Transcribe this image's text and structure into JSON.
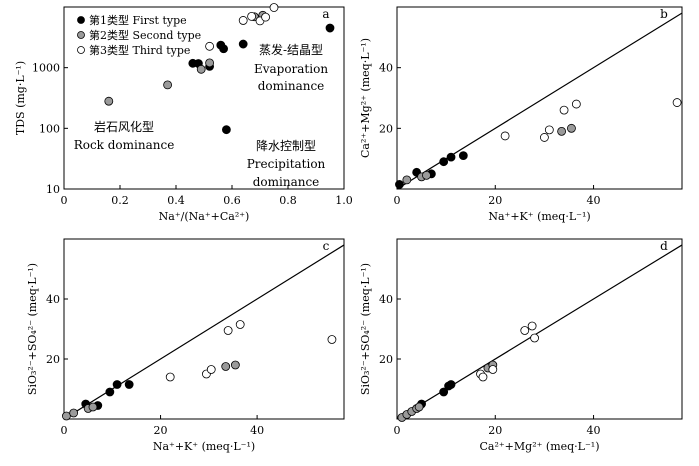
{
  "chart_data": [
    {
      "panel": "a",
      "type": "scatter",
      "xlabel": "Na⁺/(Na⁺+Ca²⁺)",
      "ylabel": "TDS (mg·L⁻¹)",
      "xlim": [
        0,
        1.0
      ],
      "ylim": [
        10,
        10000
      ],
      "y_scale": "log",
      "x_ticks": [
        "0",
        "0.2",
        "0.4",
        "0.6",
        "0.8",
        "1.0"
      ],
      "y_ticks": [
        "10",
        "100",
        "1000"
      ],
      "legend": {
        "position": "top-left",
        "entries": [
          "第1类型 First type",
          "第2类型 Second type",
          "第3类型 Third type"
        ]
      },
      "annotations": {
        "rock_cn": "岩石风化型",
        "rock_en": "Rock dominance",
        "evap_cn": "蒸发-结晶型",
        "evap_en1": "Evaporation",
        "evap_en2": "dominance",
        "precip_cn": "降水控制型",
        "precip_en1": "Precipitation",
        "precip_en2": "dominance"
      },
      "series": [
        {
          "name": "第1类型 First type",
          "points": [
            [
              0.46,
              1180
            ],
            [
              0.48,
              1170
            ],
            [
              0.52,
              1050
            ],
            [
              0.56,
              2350
            ],
            [
              0.57,
              2050
            ],
            [
              0.58,
              95
            ],
            [
              0.64,
              2450
            ],
            [
              0.95,
              4500
            ]
          ]
        },
        {
          "name": "第2类型 Second type",
          "points": [
            [
              0.16,
              280
            ],
            [
              0.37,
              520
            ],
            [
              0.49,
              940
            ],
            [
              0.52,
              1200
            ],
            [
              0.68,
              6900
            ],
            [
              0.71,
              7300
            ]
          ]
        },
        {
          "name": "第3类型 Third type",
          "points": [
            [
              0.52,
              2250
            ],
            [
              0.64,
              6000
            ],
            [
              0.67,
              7000
            ],
            [
              0.7,
              5900
            ],
            [
              0.72,
              6800
            ],
            [
              0.75,
              9800
            ]
          ]
        }
      ]
    },
    {
      "panel": "b",
      "type": "scatter",
      "xlabel": "Na⁺+K⁺ (meq·L⁻¹)",
      "ylabel": "Ca²⁺+Mg²⁺ (meq·L⁻¹)",
      "xlim": [
        0,
        58
      ],
      "ylim": [
        0,
        60
      ],
      "x_ticks": [
        "0",
        "20",
        "40"
      ],
      "y_ticks": [
        "20",
        "40"
      ],
      "reference_line": "1:1",
      "series": [
        {
          "name": "第1类型 First type",
          "points": [
            [
              0.5,
              1.5
            ],
            [
              4,
              5.5
            ],
            [
              7,
              5
            ],
            [
              9.5,
              9
            ],
            [
              11,
              10.5
            ],
            [
              13.5,
              11
            ]
          ]
        },
        {
          "name": "第2类型 Second type",
          "points": [
            [
              2,
              3
            ],
            [
              5,
              4
            ],
            [
              6,
              4.5
            ],
            [
              33.5,
              19
            ],
            [
              35.5,
              20
            ]
          ]
        },
        {
          "name": "第3类型 Third type",
          "points": [
            [
              22,
              17.5
            ],
            [
              30,
              17
            ],
            [
              31,
              19.5
            ],
            [
              34,
              26
            ],
            [
              36.5,
              28
            ],
            [
              57,
              28.5
            ]
          ]
        }
      ]
    },
    {
      "panel": "c",
      "type": "scatter",
      "xlabel": "Na⁺+K⁺ (meq·L⁻¹)",
      "ylabel": "SiO₃²⁻+SO₄²⁻ (meq·L⁻¹)",
      "xlim": [
        0,
        58
      ],
      "ylim": [
        0,
        60
      ],
      "x_ticks": [
        "0",
        "20",
        "40"
      ],
      "y_ticks": [
        "20",
        "40"
      ],
      "reference_line": "1:1",
      "series": [
        {
          "name": "第1类型 First type",
          "points": [
            [
              4.5,
              5
            ],
            [
              7,
              4.5
            ],
            [
              9.5,
              9
            ],
            [
              11,
              11.5
            ],
            [
              13.5,
              11.5
            ]
          ]
        },
        {
          "name": "第2类型 Second type",
          "points": [
            [
              0.5,
              1
            ],
            [
              2,
              2
            ],
            [
              5,
              3.5
            ],
            [
              6,
              4
            ],
            [
              33.5,
              17.5
            ],
            [
              35.5,
              18
            ]
          ]
        },
        {
          "name": "第3类型 Third type",
          "points": [
            [
              22,
              14
            ],
            [
              29.5,
              15
            ],
            [
              30.5,
              16.5
            ],
            [
              34,
              29.5
            ],
            [
              36.5,
              31.5
            ],
            [
              55.5,
              26.5
            ]
          ]
        }
      ]
    },
    {
      "panel": "d",
      "type": "scatter",
      "xlabel": "Ca²⁺+Mg²⁺ (meq·L⁻¹)",
      "ylabel": "SiO₃²⁻+SO₄²⁻ (meq·L⁻¹)",
      "xlim": [
        0,
        58
      ],
      "ylim": [
        0,
        60
      ],
      "x_ticks": [
        "0",
        "20",
        "40"
      ],
      "y_ticks": [
        "20",
        "40"
      ],
      "reference_line": "1:1",
      "series": [
        {
          "name": "第1类型 First type",
          "points": [
            [
              5,
              5
            ],
            [
              9.5,
              9
            ],
            [
              10.5,
              11
            ],
            [
              11,
              11.5
            ]
          ]
        },
        {
          "name": "第2类型 Second type",
          "points": [
            [
              1,
              0.5
            ],
            [
              2,
              1.5
            ],
            [
              3,
              2.5
            ],
            [
              4,
              3.5
            ],
            [
              4.5,
              4
            ],
            [
              18.5,
              17
            ],
            [
              19.5,
              18
            ]
          ]
        },
        {
          "name": "第3类型 Third type",
          "points": [
            [
              17,
              15
            ],
            [
              17.5,
              14
            ],
            [
              19.5,
              16.5
            ],
            [
              26,
              29.5
            ],
            [
              27.5,
              31
            ],
            [
              28,
              27
            ]
          ]
        }
      ]
    }
  ]
}
